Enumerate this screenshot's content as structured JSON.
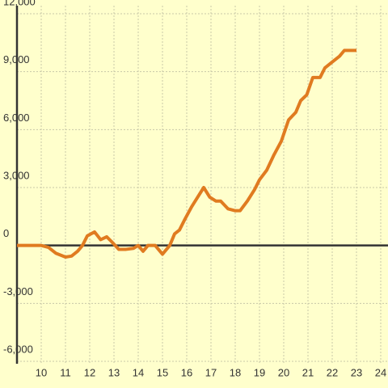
{
  "chart_data": {
    "type": "line",
    "x": [
      9,
      10,
      10.3,
      10.6,
      11,
      11.25,
      11.5,
      11.7,
      11.9,
      12.2,
      12.45,
      12.7,
      12.9,
      13.2,
      13.5,
      13.8,
      14,
      14.2,
      14.4,
      14.7,
      15,
      15.3,
      15.5,
      15.7,
      15.9,
      16.2,
      16.5,
      16.7,
      16.95,
      17.2,
      17.4,
      17.7,
      18,
      18.2,
      18.5,
      18.8,
      19,
      19.3,
      19.6,
      19.9,
      20.2,
      20.5,
      20.7,
      20.95,
      21.2,
      21.5,
      21.7,
      22,
      22.3,
      22.5,
      23
    ],
    "series": [
      {
        "color": "#e07b20",
        "values": [
          0,
          0,
          -100,
          -400,
          -600,
          -550,
          -300,
          0,
          500,
          700,
          300,
          450,
          200,
          -200,
          -200,
          -150,
          0,
          -300,
          0,
          0,
          -450,
          0,
          600,
          800,
          1300,
          2000,
          2600,
          3000,
          2500,
          2300,
          2300,
          1900,
          1800,
          1800,
          2300,
          2900,
          3400,
          3900,
          4700,
          5400,
          6500,
          6900,
          7500,
          7800,
          8700,
          8700,
          9200,
          9500,
          9800,
          10100,
          10100
        ]
      }
    ],
    "xlim": [
      9,
      24.3
    ],
    "xticks": [
      10,
      11,
      12,
      13,
      14,
      15,
      16,
      17,
      18,
      19,
      20,
      21,
      22,
      23,
      24
    ],
    "ylim": [
      -6000,
      12000
    ],
    "yticks": [
      {
        "value": -6000,
        "label": "-6,000"
      },
      {
        "value": -3000,
        "label": "-3,000"
      },
      0,
      {
        "value": 3000,
        "label": "3,000"
      },
      {
        "value": 6000,
        "label": "6,000"
      },
      {
        "value": 9000,
        "label": "9,000"
      },
      {
        "value": 12000,
        "label": "12,000"
      }
    ],
    "grid": true
  }
}
